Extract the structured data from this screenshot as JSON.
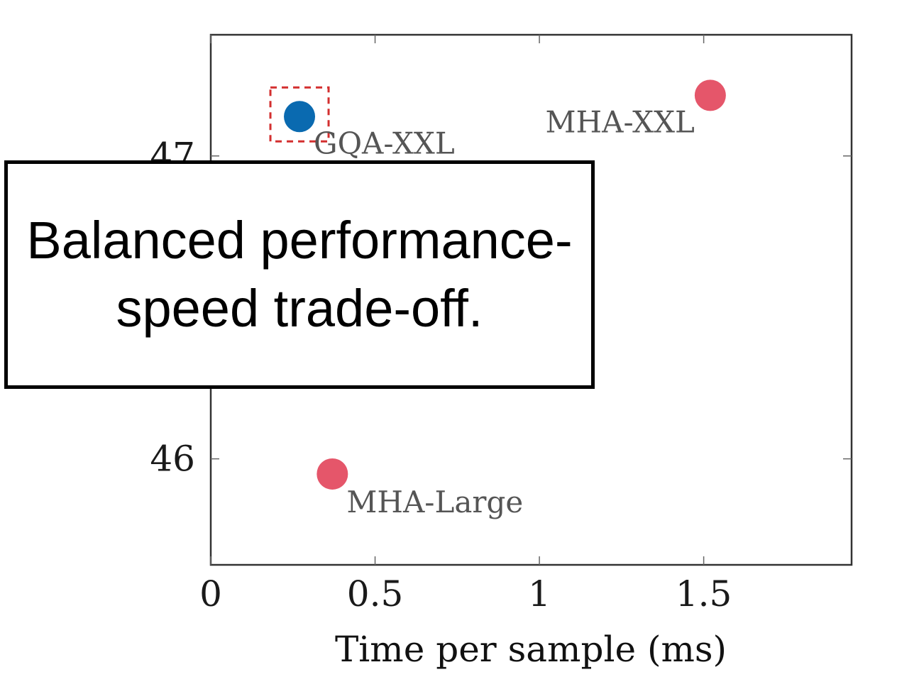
{
  "chart_data": {
    "type": "scatter",
    "title": "",
    "xlabel": "Time per sample (ms)",
    "ylabel": "",
    "xlim": [
      0,
      1.95
    ],
    "ylim": [
      45.65,
      47.4
    ],
    "x_ticks": [
      0,
      0.5,
      1,
      1.5
    ],
    "x_tick_labels": [
      "0",
      "0.5",
      "1",
      "1.5"
    ],
    "y_ticks": [
      46,
      47
    ],
    "y_tick_labels": [
      "46",
      "47"
    ],
    "grid": false,
    "points": [
      {
        "label": "GQA-XXL",
        "x": 0.27,
        "y": 47.13,
        "color": "#0a6ab0",
        "highlighted": true
      },
      {
        "label": "MHA-XXL",
        "x": 1.52,
        "y": 47.2,
        "color": "#e5566a",
        "highlighted": false
      },
      {
        "label": "MHA-Large",
        "x": 0.37,
        "y": 45.95,
        "color": "#e5566a",
        "highlighted": false
      }
    ],
    "highlight_color": "#d32f2f"
  },
  "callout": {
    "text": "Balanced performance-speed trade-off."
  }
}
